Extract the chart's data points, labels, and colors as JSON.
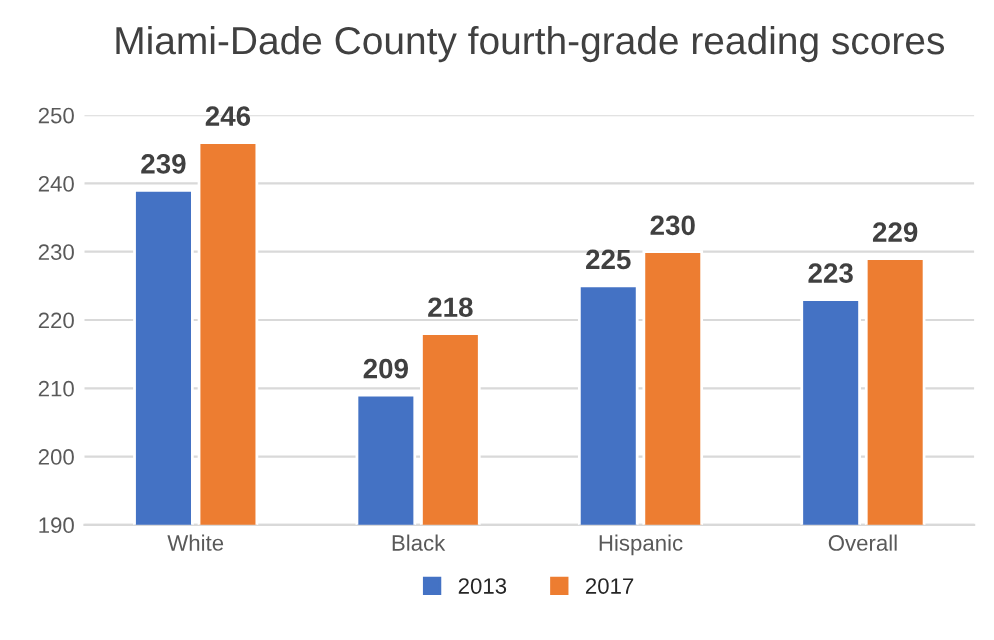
{
  "chart_data": {
    "type": "bar",
    "title": "Miami-Dade County fourth-grade reading scores",
    "categories": [
      "White",
      "Black",
      "Hispanic",
      "Overall"
    ],
    "series": [
      {
        "name": "2013",
        "color": "#4472c4",
        "values": [
          239,
          209,
          225,
          223
        ]
      },
      {
        "name": "2017",
        "color": "#ed7d31",
        "values": [
          246,
          218,
          230,
          229
        ]
      }
    ],
    "ylim": [
      190,
      250
    ],
    "yticks": [
      190,
      200,
      210,
      220,
      230,
      240,
      250
    ],
    "grid": "y",
    "legend": "bottom",
    "data_labels": true
  }
}
